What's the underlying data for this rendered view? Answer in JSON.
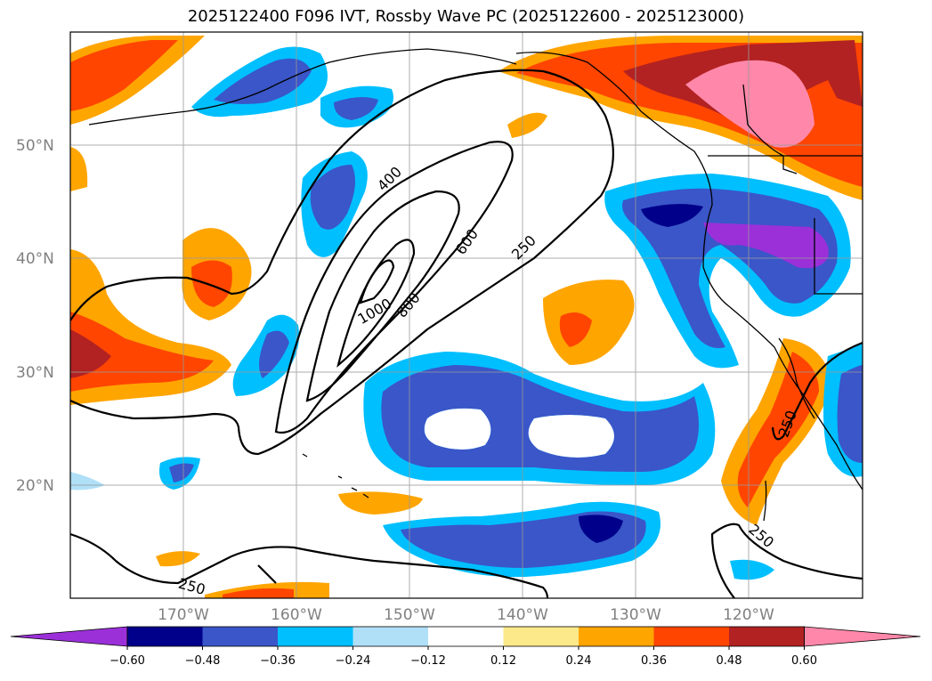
{
  "title": "2025122400 F096 IVT, Rossby Wave PC (2025122600 - 2025123000)",
  "map": {
    "lat_labels": [
      "50°N",
      "40°N",
      "30°N",
      "20°N"
    ],
    "lon_labels": [
      "170°W",
      "160°W",
      "150°W",
      "140°W",
      "130°W",
      "120°W"
    ],
    "contour_labels": [
      "400",
      "600",
      "250",
      "1000",
      "800",
      "250",
      "250",
      "250"
    ],
    "contour_levels": [
      250,
      400,
      600,
      800,
      1000
    ],
    "grid": true
  },
  "colorbar": {
    "ticks": [
      "−0.60",
      "−0.48",
      "−0.36",
      "−0.24",
      "−0.12",
      "0.12",
      "0.24",
      "0.36",
      "0.48",
      "0.60"
    ],
    "colors": [
      "#9b30d9",
      "#00008b",
      "#3a56c8",
      "#00bfff",
      "#b0e0f8",
      "#ffffff",
      "#fce98a",
      "#ffa500",
      "#ff4500",
      "#b22222",
      "#ff88aa"
    ]
  }
}
